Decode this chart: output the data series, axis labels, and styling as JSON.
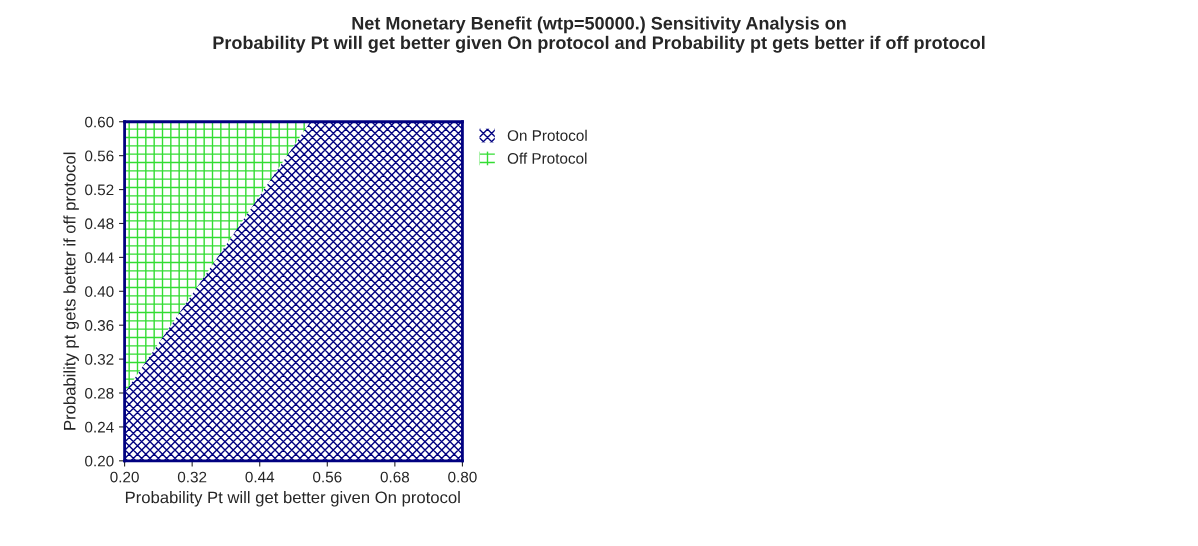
{
  "chart_data": {
    "type": "area",
    "title": "Net Monetary Benefit (wtp=50000.) Sensitivity Analysis on\nProbability Pt will get better given On protocol and Probability pt gets better if off protocol",
    "xlabel": "Probability Pt will get better given On protocol",
    "ylabel": "Probability pt gets better if off protocol",
    "series": [
      {
        "name": "On Protocol",
        "color": "#000080",
        "x": [
          0.2,
          0.53,
          0.8
        ],
        "values": [
          0.28,
          0.6,
          0.6
        ]
      },
      {
        "name": "Off Protocol",
        "color": "#33dd33",
        "x": [
          0.2,
          0.53
        ],
        "values": [
          0.6,
          0.6
        ]
      }
    ],
    "xlim": [
      0.2,
      0.8
    ],
    "ylim": [
      0.2,
      0.6
    ],
    "xticks": [
      {
        "value": 0.2,
        "label": "0.20"
      },
      {
        "value": 0.32,
        "label": "0.32"
      },
      {
        "value": 0.44,
        "label": "0.44"
      },
      {
        "value": 0.56,
        "label": "0.56"
      },
      {
        "value": 0.68,
        "label": "0.68"
      },
      {
        "value": 0.8,
        "label": "0.80"
      }
    ],
    "yticks": [
      {
        "value": 0.2,
        "label": "0.20"
      },
      {
        "value": 0.24,
        "label": "0.24"
      },
      {
        "value": 0.28,
        "label": "0.28"
      },
      {
        "value": 0.32,
        "label": "0.32"
      },
      {
        "value": 0.36,
        "label": "0.36"
      },
      {
        "value": 0.4,
        "label": "0.40"
      },
      {
        "value": 0.44,
        "label": "0.44"
      },
      {
        "value": 0.48,
        "label": "0.48"
      },
      {
        "value": 0.52,
        "label": "0.52"
      },
      {
        "value": 0.56,
        "label": "0.56"
      },
      {
        "value": 0.6,
        "label": "0.60"
      }
    ],
    "legend": "top right"
  }
}
